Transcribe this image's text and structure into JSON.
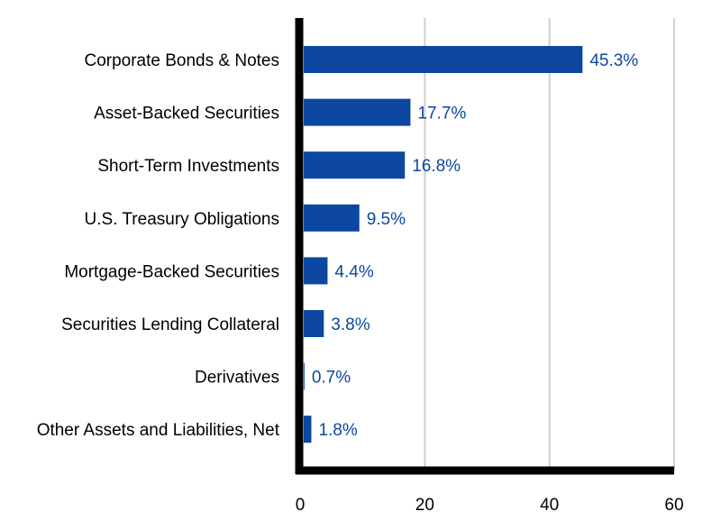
{
  "colors": {
    "bar": "#0D47A1",
    "label": "#0D47A1",
    "axis": "#000000",
    "grid": "#D0D0D0",
    "text": "#000000"
  },
  "chart_data": {
    "type": "bar",
    "orientation": "horizontal",
    "categories": [
      "Corporate Bonds & Notes",
      "Asset-Backed Securities",
      "Short-Term Investments",
      "U.S. Treasury Obligations",
      "Mortgage-Backed Securities",
      "Securities Lending Collateral",
      "Derivatives",
      "Other Assets and Liabilities, Net"
    ],
    "values": [
      45.3,
      17.7,
      16.8,
      9.5,
      4.4,
      3.8,
      0.7,
      1.8
    ],
    "data_labels": [
      "45.3%",
      "17.7%",
      "16.8%",
      "9.5%",
      "4.4%",
      "3.8%",
      "0.7%",
      "1.8%"
    ],
    "x_ticks": [
      0,
      20,
      40,
      60
    ],
    "xlim": [
      0,
      60
    ],
    "grid": "vertical",
    "legend": "none",
    "title": "",
    "xlabel": "",
    "ylabel": ""
  }
}
